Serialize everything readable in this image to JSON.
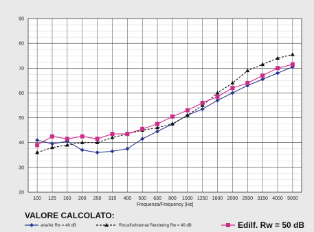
{
  "chart_data": {
    "type": "line",
    "categories": [
      "100",
      "125",
      "160",
      "200",
      "250",
      "315",
      "400",
      "500",
      "630",
      "800",
      "1000",
      "1250",
      "1600",
      "2000",
      "2500",
      "3150",
      "4000",
      "5000"
    ],
    "xlabel": "Frequenza/Frequency [Hz]",
    "ylim": [
      20,
      90
    ],
    "yticks": [
      20,
      30,
      40,
      50,
      60,
      70,
      80,
      90
    ],
    "grid": true,
    "series": [
      {
        "name": "aria/Air Rw = 46 dB",
        "color": "#2b3a8c",
        "style": "solid",
        "marker": "diamond",
        "values": [
          41,
          39.5,
          40.5,
          37,
          36,
          36.5,
          37.5,
          41.5,
          44.5,
          47.5,
          51,
          53.5,
          57,
          60,
          63,
          65.5,
          68,
          70.5
        ]
      },
      {
        "name": "Rinzaffo/Internal Rendering Rw = 49 dB",
        "color": "#111111",
        "style": "dashed",
        "marker": "triangle",
        "values": [
          36,
          38,
          39,
          40,
          40,
          42,
          43.5,
          45,
          46,
          47.5,
          51,
          55,
          60,
          64,
          69,
          71.5,
          74,
          75.5
        ]
      },
      {
        "name": "Edilf. Rw = 50 dB",
        "color": "#cc2d8a",
        "style": "solid",
        "marker": "square",
        "values": [
          39,
          42.5,
          41.5,
          42.5,
          41.5,
          43.5,
          43.5,
          45.5,
          47.5,
          50.5,
          53,
          56,
          58.5,
          62,
          64,
          67,
          70,
          71.5
        ]
      }
    ]
  },
  "calc_label": "VALORE CALCOLATO:"
}
